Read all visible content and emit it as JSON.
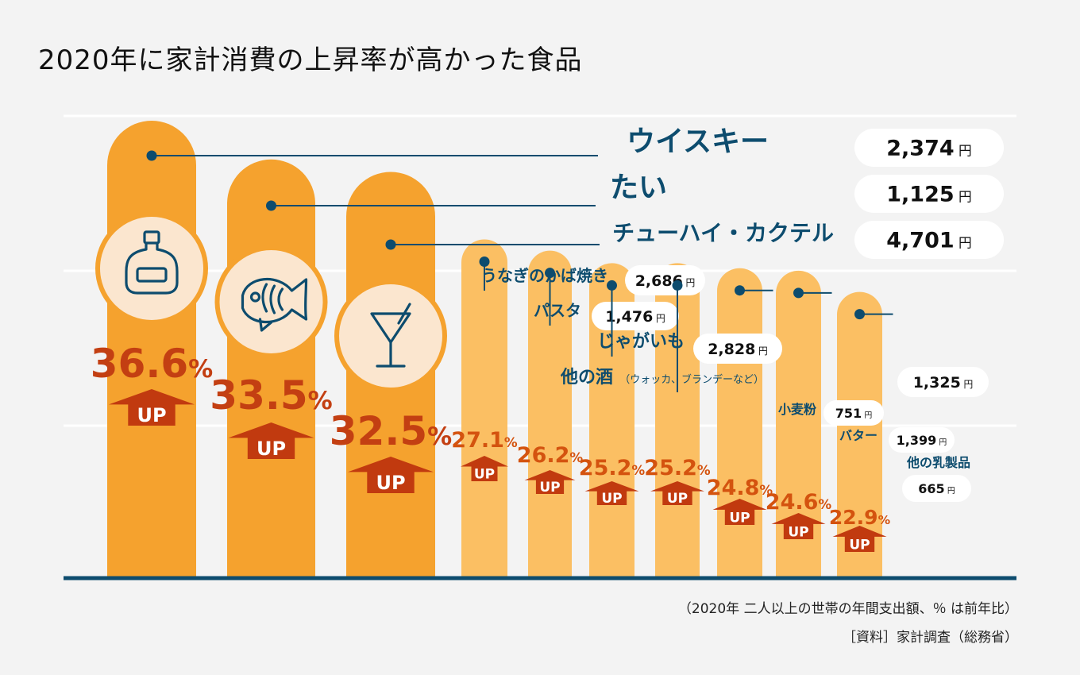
{
  "title": "2020年に家計消費の上昇率が高かった食品",
  "notes": {
    "period": "（2020年 二人以上の世帯の年間支出額、％ は前年比）",
    "source": "［資料］家計調査（総務省）"
  },
  "labels": {
    "up": "UP",
    "yen": "円",
    "percent": "%"
  },
  "icons": [
    "bottle-icon",
    "fish-icon",
    "cocktail-icon"
  ],
  "colors": {
    "background": "#f3f3f3",
    "top_bar": "#f5a22e",
    "other_bar": "#fbbf63",
    "icon_fill": "#fbe6cf",
    "navy": "#0d4c6e",
    "up_arrow": "#c13a0f",
    "pct_text_large": "#c33f12",
    "pct_text_small": "#d4530f",
    "pill": "#ffffff"
  },
  "chart_data": {
    "type": "bar",
    "title": "2020年に家計消費の上昇率が高かった食品",
    "ylabel": "",
    "ylim": [
      0,
      40
    ],
    "grid": true,
    "categories": [
      "ウイスキー",
      "たい",
      "チューハイ・カクテル",
      "うなぎのかば焼き",
      "パスタ",
      "じゃがいも",
      "他の酒",
      "小麦粉",
      "バター",
      "他の乳製品"
    ],
    "category_notes": [
      "",
      "",
      "",
      "",
      "",
      "",
      "（ウォッカ、ブランデーなど）",
      "",
      "",
      ""
    ],
    "values": [
      36.6,
      33.5,
      32.5,
      27.1,
      26.2,
      25.2,
      25.2,
      24.8,
      24.6,
      22.9
    ],
    "value_labels": [
      "36.6",
      "33.5",
      "32.5",
      "27.1",
      "26.2",
      "25.2",
      "25.2",
      "24.8",
      "24.6",
      "22.9"
    ],
    "spending": [
      "2,374",
      "1,125",
      "4,701",
      "2,686",
      "1,476",
      "2,828",
      "1,325",
      "751",
      "1,399",
      "665"
    ]
  }
}
